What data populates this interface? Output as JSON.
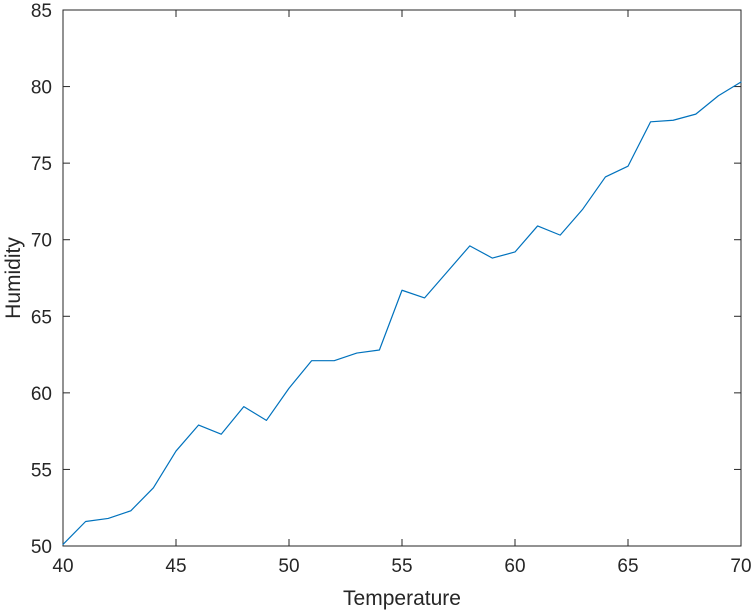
{
  "chart_data": {
    "type": "line",
    "title": "",
    "xlabel": "Temperature",
    "ylabel": "Humidity",
    "xlim": [
      40,
      70
    ],
    "ylim": [
      50,
      85
    ],
    "x_ticks": [
      40,
      45,
      50,
      55,
      60,
      65,
      70
    ],
    "y_ticks": [
      50,
      55,
      60,
      65,
      70,
      75,
      80,
      85
    ],
    "grid": false,
    "legend": "none",
    "series": [
      {
        "color": "#0072BD",
        "x": [
          40,
          41,
          42,
          43,
          44,
          45,
          46,
          47,
          48,
          49,
          50,
          51,
          52,
          53,
          54,
          55,
          56,
          57,
          58,
          59,
          60,
          61,
          62,
          63,
          64,
          65,
          66,
          67,
          68,
          69,
          70
        ],
        "y": [
          50.1,
          51.6,
          51.8,
          52.3,
          53.8,
          56.2,
          57.9,
          57.3,
          59.1,
          58.2,
          60.3,
          62.1,
          62.1,
          62.6,
          62.8,
          66.7,
          66.2,
          67.9,
          69.6,
          68.8,
          69.2,
          70.9,
          70.3,
          72.0,
          74.1,
          74.8,
          77.7,
          77.8,
          78.2,
          79.4,
          80.3
        ]
      }
    ]
  }
}
